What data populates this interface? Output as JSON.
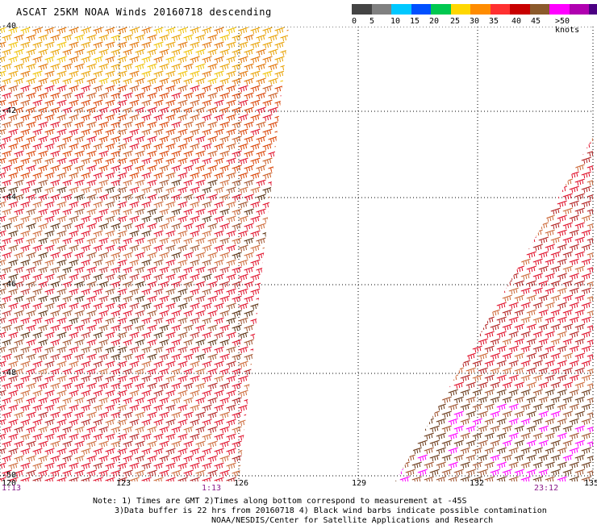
{
  "title": "ASCAT 25KM NOAA Winds 20160718 descending",
  "legend": {
    "colors": [
      "#444444",
      "#808080",
      "#00c8ff",
      "#0050ff",
      "#00c850",
      "#ffd700",
      "#ff8c00",
      "#ff3030",
      "#c80000",
      "#8b5a2b",
      "#ff00ff",
      "#b000b0",
      "#4b0082"
    ],
    "labels": [
      "0",
      "5",
      "10",
      "15",
      "20",
      "25",
      "30",
      "35",
      "40",
      "45",
      ">50 knots"
    ]
  },
  "lat_labels": [
    "-40",
    "-42",
    "-44",
    "-46",
    "-48",
    "-50"
  ],
  "lon_labels": [
    "120",
    "123",
    "126",
    "129",
    "132",
    "135"
  ],
  "times": [
    "1:13",
    "1:13",
    "23:12"
  ],
  "notes": [
    "Note: 1) Times are GMT 2)Times along bottom correspond to measurement at -45S",
    "3)Data buffer is 22 hrs from 20160718 4) Black wind barbs indicate possible contamination",
    "NOAA/NESDIS/Center for Satellite Applications and Research"
  ]
}
